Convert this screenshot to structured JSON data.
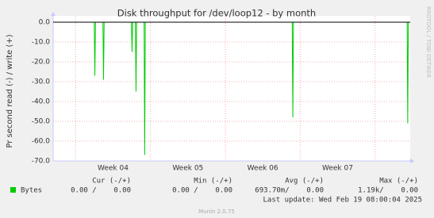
{
  "chart_data": {
    "type": "line",
    "title": "Disk throughput for /dev/loop12 - by month",
    "ylabel": "Pr second read (-) / write (+)",
    "side_text": "RRDTOOL / TOBI OETIKER",
    "x": [
      3.2,
      3.749,
      3.757,
      3.765,
      3.865,
      3.873,
      3.881,
      4.246,
      4.254,
      4.262,
      4.299,
      4.307,
      4.315,
      4.415,
      4.423,
      4.431,
      6.394,
      6.402,
      6.41,
      7.929,
      7.937,
      7.945,
      7.97
    ],
    "series": [
      {
        "name": "Bytes",
        "color": "#00cc00",
        "values": [
          0,
          0,
          -27,
          0,
          0,
          -29,
          0,
          0,
          -15,
          0,
          0,
          -35,
          0,
          0,
          -67,
          0,
          0,
          -48,
          0,
          0,
          -51,
          0,
          0
        ],
        "summary": [
          "0.00 /    0.00",
          "0.00 /    0.00",
          "693.70m/    0.00",
          "1.19k/    0.00"
        ]
      }
    ],
    "summary_headers": [
      "Cur (-/+)",
      "Min (-/+)",
      "Avg (-/+)",
      "Max (-/+)"
    ],
    "xlim": [
      3.2,
      7.97
    ],
    "xticks": [
      {
        "value": 4,
        "label": "Week 04"
      },
      {
        "value": 5,
        "label": "Week 05"
      },
      {
        "value": 6,
        "label": "Week 06"
      },
      {
        "value": 7,
        "label": "Week 07"
      }
    ],
    "xgrid": [
      3.5,
      4.5,
      5.5,
      6.5,
      7.5
    ],
    "ylim": [
      -70,
      3.2
    ],
    "yticks": [
      {
        "value": 0,
        "label": "0.0"
      },
      {
        "value": -10,
        "label": "-10.0"
      },
      {
        "value": -20,
        "label": "-20.0"
      },
      {
        "value": -30,
        "label": "-30.0"
      },
      {
        "value": -40,
        "label": "-40.0"
      },
      {
        "value": -50,
        "label": "-50.0"
      },
      {
        "value": -60,
        "label": "-60.0"
      },
      {
        "value": -70,
        "label": "-70.0"
      }
    ],
    "grid": true,
    "last_update": "Last update: Wed Feb 19 08:00:04 2025",
    "footer": "Munin 2.0.75"
  }
}
